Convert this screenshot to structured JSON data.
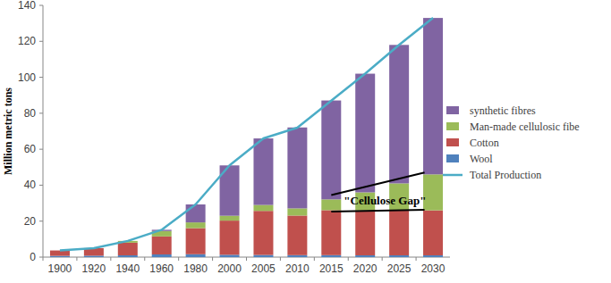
{
  "chart_data": {
    "type": "bar",
    "stacked": true,
    "grid": false,
    "legend": "right",
    "y_label": "Million metric tons",
    "categories": [
      "1900",
      "1920",
      "1940",
      "1960",
      "1980",
      "2000",
      "2005",
      "2010",
      "2015",
      "2020",
      "2025",
      "2030"
    ],
    "ylim": [
      0,
      140
    ],
    "yticks": [
      0,
      20,
      40,
      60,
      80,
      100,
      120,
      140
    ],
    "series": [
      {
        "name": "Wool",
        "color": "#4f81bd",
        "type": "bar",
        "values": [
          0.7,
          0.8,
          1,
          1.5,
          1.6,
          1.3,
          1.2,
          1.1,
          1.1,
          1,
          1,
          1
        ]
      },
      {
        "name": "Cotton",
        "color": "#c0504d",
        "type": "bar",
        "values": [
          3,
          4.2,
          7,
          10,
          14.5,
          19,
          24.5,
          22,
          25,
          25,
          25,
          25
        ]
      },
      {
        "name": "Man-made cellulosic fibe",
        "color": "#9bbb59",
        "type": "bar",
        "values": [
          0,
          0,
          1,
          3,
          3.2,
          2.7,
          3.3,
          4,
          6,
          10,
          15,
          20
        ]
      },
      {
        "name": "synthetic fibres",
        "color": "#8064a2",
        "type": "bar",
        "values": [
          0,
          0,
          0,
          0.7,
          10,
          28,
          37,
          45,
          55,
          66,
          77,
          87
        ]
      },
      {
        "name": "Total Production",
        "color": "#4bacc6",
        "type": "line",
        "values": [
          3.7,
          5,
          9,
          15.2,
          29.3,
          51,
          66,
          72,
          87,
          102,
          118,
          133
        ]
      }
    ],
    "annotations": [
      {
        "text": "\"Cellulose Gap\"",
        "lines": [
          {
            "x": [
              "2015",
              "2030"
            ],
            "y": [
              34.5,
              47
            ]
          },
          {
            "x": [
              "2015",
              "2030"
            ],
            "y": [
              25.3,
              26.3
            ]
          }
        ]
      }
    ]
  }
}
